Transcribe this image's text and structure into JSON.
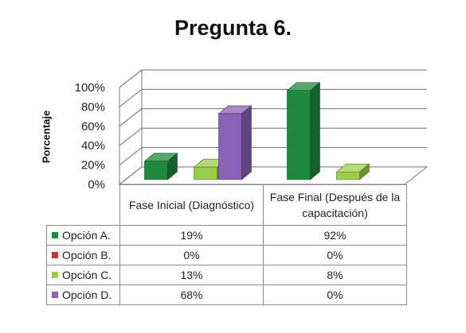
{
  "chart_data": {
    "type": "bar",
    "title": "Pregunta 6.",
    "ylabel": "Porcentaje",
    "ylim": [
      0,
      100
    ],
    "yticks": [
      "0%",
      "20%",
      "40%",
      "60%",
      "80%",
      "100%"
    ],
    "categories": [
      "Fase Inicial (Diagnóstico)",
      "Fase Final (Después de la capacitación)"
    ],
    "series": [
      {
        "name": "Opción A.",
        "color": "#1e8a3c",
        "values": [
          19,
          92
        ],
        "labels": [
          "19%",
          "92%"
        ]
      },
      {
        "name": "Opción B.",
        "color": "#c0392b",
        "values": [
          0,
          0
        ],
        "labels": [
          "0%",
          "0%"
        ]
      },
      {
        "name": "Opción C.",
        "color": "#9acd4a",
        "values": [
          13,
          8
        ],
        "labels": [
          "13%",
          "8%"
        ]
      },
      {
        "name": "Opción D.",
        "color": "#8a62b8",
        "values": [
          68,
          0
        ],
        "labels": [
          "68%",
          "0%"
        ]
      }
    ],
    "grid": true,
    "legend": "table"
  }
}
